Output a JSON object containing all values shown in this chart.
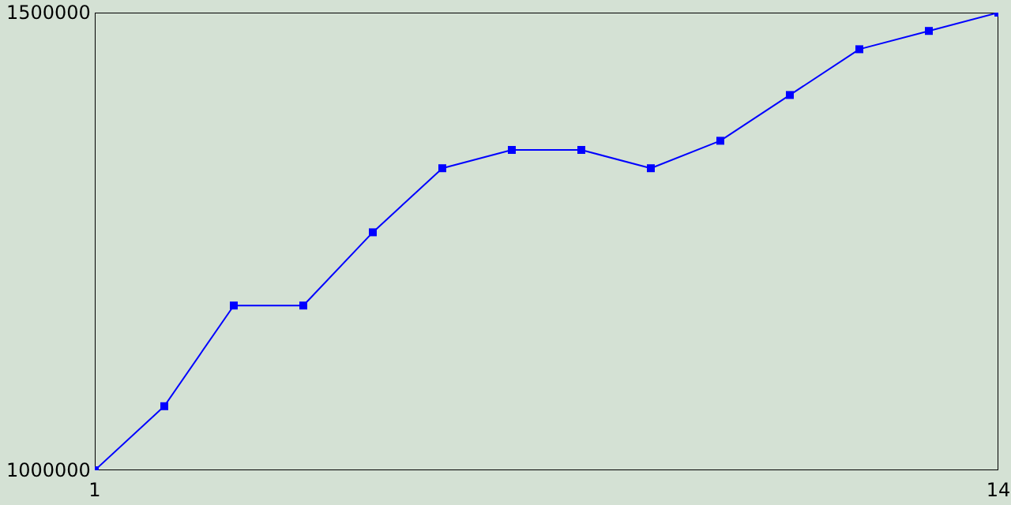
{
  "chart_data": {
    "type": "line",
    "x": [
      1,
      2,
      3,
      4,
      5,
      6,
      7,
      8,
      9,
      10,
      11,
      12,
      13,
      14
    ],
    "series": [
      {
        "color": "#0000ff",
        "values": [
          1000000,
          1070000,
          1180000,
          1180000,
          1260000,
          1330000,
          1350000,
          1350000,
          1330000,
          1360000,
          1410000,
          1460000,
          1480000,
          1500000
        ]
      }
    ],
    "xlim": [
      1,
      14
    ],
    "xticks": [
      1,
      14
    ],
    "ylim": [
      1000000,
      1500000
    ],
    "yticks": [
      1000000,
      1500000
    ],
    "grid": false,
    "legend": false,
    "marker": "square",
    "line_style": "solid"
  }
}
